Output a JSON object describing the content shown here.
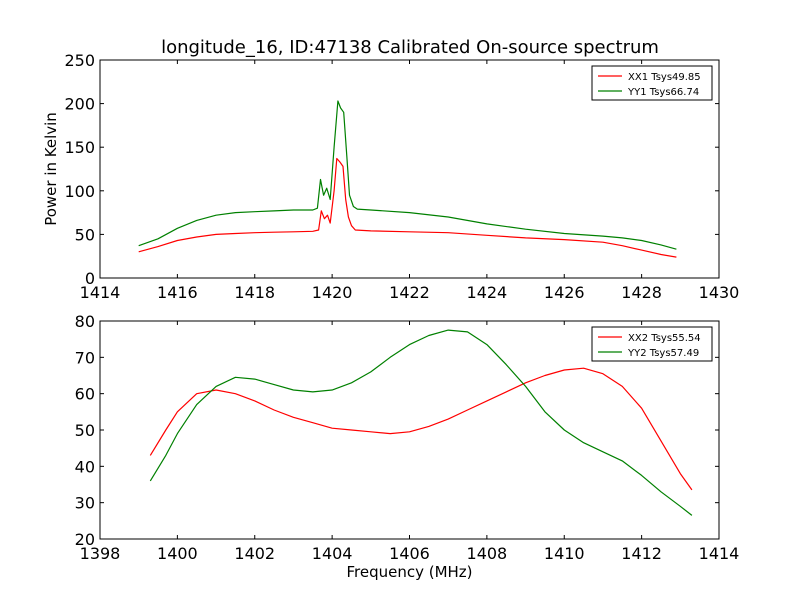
{
  "figure": {
    "title": "longitude_16, ID:47138 Calibrated On-source spectrum"
  },
  "chart_data": [
    {
      "type": "line",
      "title": "longitude_16, ID:47138 Calibrated On-source spectrum",
      "xlabel": "",
      "ylabel": "Power in Kelvin",
      "xlim": [
        1414,
        1430
      ],
      "ylim": [
        0,
        250
      ],
      "xticks": [
        1414,
        1416,
        1418,
        1420,
        1422,
        1424,
        1426,
        1428,
        1430
      ],
      "yticks": [
        0,
        50,
        100,
        150,
        200,
        250
      ],
      "grid": false,
      "legend_position": "top-right",
      "series": [
        {
          "name": "XX1 Tsys49.85",
          "color": "#ff0000",
          "x": [
            1415.0,
            1415.5,
            1416.0,
            1416.5,
            1417.0,
            1417.5,
            1418.0,
            1418.5,
            1419.0,
            1419.5,
            1419.65,
            1419.72,
            1419.8,
            1419.88,
            1419.95,
            1420.05,
            1420.12,
            1420.2,
            1420.28,
            1420.35,
            1420.42,
            1420.5,
            1420.6,
            1421.0,
            1422.0,
            1423.0,
            1424.0,
            1425.0,
            1426.0,
            1427.0,
            1427.5,
            1428.0,
            1428.5,
            1428.9
          ],
          "y": [
            30,
            36,
            43,
            47,
            50,
            51,
            52,
            52.5,
            53,
            53.5,
            55,
            77,
            68,
            72,
            63,
            100,
            137,
            133,
            128,
            90,
            70,
            60,
            55,
            54,
            53,
            52,
            49,
            46,
            44,
            41,
            37,
            32,
            27,
            24
          ]
        },
        {
          "name": "YY1 Tsys66.74",
          "color": "#008000",
          "x": [
            1415.0,
            1415.5,
            1416.0,
            1416.5,
            1417.0,
            1417.5,
            1418.0,
            1418.5,
            1419.0,
            1419.5,
            1419.62,
            1419.7,
            1419.78,
            1419.86,
            1419.95,
            1420.05,
            1420.15,
            1420.22,
            1420.3,
            1420.38,
            1420.45,
            1420.55,
            1420.65,
            1421.0,
            1422.0,
            1423.0,
            1424.0,
            1425.0,
            1426.0,
            1427.0,
            1427.5,
            1428.0,
            1428.5,
            1428.9
          ],
          "y": [
            37,
            45,
            57,
            66,
            72,
            75,
            76,
            77,
            78,
            78,
            80,
            113,
            95,
            103,
            90,
            150,
            203,
            195,
            190,
            140,
            95,
            82,
            79,
            78,
            75,
            70,
            62,
            56,
            51,
            48,
            46,
            43,
            38,
            33
          ]
        }
      ]
    },
    {
      "type": "line",
      "title": "",
      "xlabel": "Frequency (MHz)",
      "ylabel": "",
      "xlim": [
        1398,
        1414
      ],
      "ylim": [
        20,
        80
      ],
      "xticks": [
        1398,
        1400,
        1402,
        1404,
        1406,
        1408,
        1410,
        1412,
        1414
      ],
      "yticks": [
        20,
        30,
        40,
        50,
        60,
        70,
        80
      ],
      "grid": false,
      "legend_position": "top-right",
      "series": [
        {
          "name": "XX2 Tsys55.54",
          "color": "#ff0000",
          "x": [
            1399.3,
            1399.7,
            1400.0,
            1400.5,
            1401.0,
            1401.5,
            1402.0,
            1402.5,
            1403.0,
            1403.5,
            1404.0,
            1404.5,
            1405.0,
            1405.5,
            1406.0,
            1406.5,
            1407.0,
            1407.5,
            1408.0,
            1408.5,
            1409.0,
            1409.5,
            1410.0,
            1410.5,
            1411.0,
            1411.5,
            1412.0,
            1412.5,
            1413.0,
            1413.3
          ],
          "y": [
            43,
            50,
            55,
            60,
            61,
            60,
            58,
            55.5,
            53.5,
            52,
            50.5,
            50,
            49.5,
            49,
            49.5,
            51,
            53,
            55.5,
            58,
            60.5,
            63,
            65,
            66.5,
            67,
            65.5,
            62,
            56,
            47,
            38,
            33.5
          ]
        },
        {
          "name": "YY2 Tsys57.49",
          "color": "#008000",
          "x": [
            1399.3,
            1399.7,
            1400.0,
            1400.5,
            1401.0,
            1401.5,
            1402.0,
            1402.5,
            1403.0,
            1403.5,
            1404.0,
            1404.5,
            1405.0,
            1405.5,
            1406.0,
            1406.5,
            1407.0,
            1407.5,
            1408.0,
            1408.5,
            1409.0,
            1409.5,
            1410.0,
            1410.5,
            1411.0,
            1411.5,
            1412.0,
            1412.5,
            1413.0,
            1413.3
          ],
          "y": [
            36,
            43,
            49,
            57,
            62,
            64.5,
            64,
            62.5,
            61,
            60.5,
            61,
            63,
            66,
            70,
            73.5,
            76,
            77.5,
            77,
            73.5,
            68,
            62,
            55,
            50,
            46.5,
            44,
            41.5,
            37.5,
            33,
            29,
            26.5
          ]
        }
      ]
    }
  ]
}
